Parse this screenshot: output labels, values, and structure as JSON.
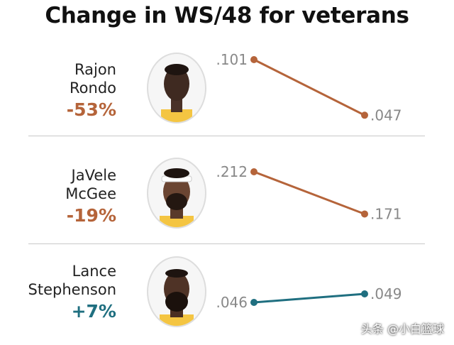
{
  "chart_data": {
    "type": "line",
    "title": "Change in WS/48 for veterans",
    "rows": [
      {
        "name_line1": "Rajon",
        "name_line2": "Rondo",
        "change": "-53%",
        "color": "#b5643a",
        "values": [
          0.101,
          0.047
        ],
        "labels": [
          ".101",
          ".047"
        ]
      },
      {
        "name_line1": "JaVele",
        "name_line2": "McGee",
        "change": "-19%",
        "color": "#b5643a",
        "values": [
          0.212,
          0.171
        ],
        "labels": [
          ".212",
          ".171"
        ]
      },
      {
        "name_line1": "Lance",
        "name_line2": "Stephenson",
        "change": "+7%",
        "color": "#1f6f80",
        "values": [
          0.046,
          0.049
        ],
        "labels": [
          ".046",
          ".049"
        ]
      }
    ]
  },
  "watermark": "头条 @小白篮球",
  "icons": [
    "player-portrait-icon"
  ]
}
